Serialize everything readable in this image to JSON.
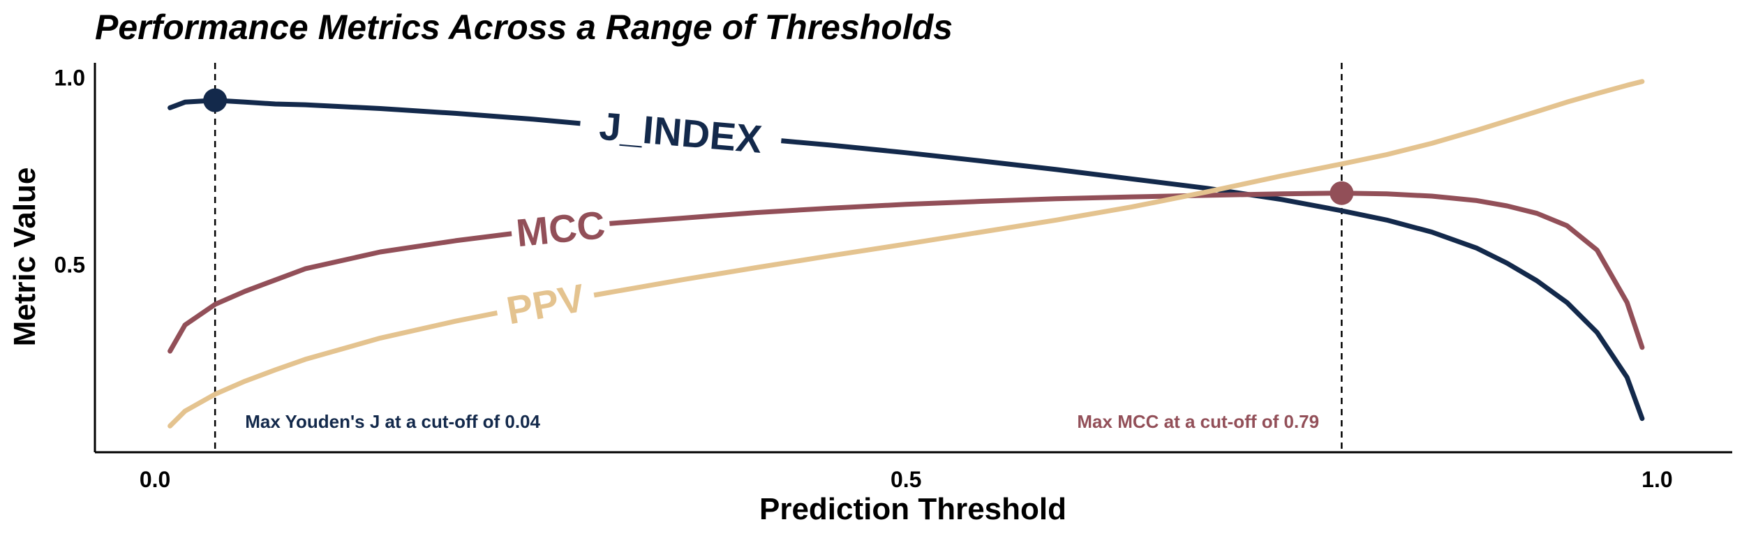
{
  "chart_data": {
    "type": "line",
    "title": "Performance Metrics Across a Range of Thresholds",
    "xlabel": "Prediction Threshold",
    "ylabel": "Metric Value",
    "xlim": [
      -0.04,
      1.05
    ],
    "ylim": [
      0.0,
      1.04
    ],
    "xticks": [
      {
        "value": 0.0,
        "label": "0.0"
      },
      {
        "value": 0.5,
        "label": "0.5"
      },
      {
        "value": 1.0,
        "label": "1.0"
      }
    ],
    "yticks": [
      {
        "value": 0.5,
        "label": "0.5"
      },
      {
        "value": 1.0,
        "label": "1.0"
      }
    ],
    "grid": false,
    "legend": "none",
    "series": [
      {
        "name": "J_INDEX",
        "color": "#13294b",
        "x": [
          0.01,
          0.02,
          0.04,
          0.06,
          0.08,
          0.1,
          0.15,
          0.2,
          0.25,
          0.3,
          0.35,
          0.4,
          0.45,
          0.5,
          0.55,
          0.6,
          0.65,
          0.7,
          0.75,
          0.79,
          0.82,
          0.85,
          0.88,
          0.9,
          0.92,
          0.94,
          0.96,
          0.98,
          0.99
        ],
        "y": [
          0.92,
          0.935,
          0.94,
          0.935,
          0.93,
          0.928,
          0.918,
          0.905,
          0.89,
          0.872,
          0.855,
          0.838,
          0.82,
          0.8,
          0.778,
          0.755,
          0.73,
          0.705,
          0.675,
          0.645,
          0.62,
          0.588,
          0.545,
          0.505,
          0.458,
          0.4,
          0.32,
          0.2,
          0.09
        ],
        "label_at": 0.35
      },
      {
        "name": "MCC",
        "color": "#924f58",
        "x": [
          0.01,
          0.02,
          0.04,
          0.06,
          0.08,
          0.1,
          0.15,
          0.2,
          0.25,
          0.3,
          0.35,
          0.4,
          0.45,
          0.5,
          0.55,
          0.6,
          0.65,
          0.7,
          0.75,
          0.79,
          0.82,
          0.85,
          0.88,
          0.9,
          0.92,
          0.94,
          0.96,
          0.98,
          0.99
        ],
        "y": [
          0.27,
          0.34,
          0.395,
          0.43,
          0.46,
          0.49,
          0.535,
          0.565,
          0.59,
          0.61,
          0.625,
          0.64,
          0.652,
          0.662,
          0.67,
          0.677,
          0.682,
          0.686,
          0.69,
          0.692,
          0.69,
          0.684,
          0.672,
          0.658,
          0.638,
          0.605,
          0.54,
          0.4,
          0.28
        ],
        "label_at": 0.27
      },
      {
        "name": "PPV",
        "color": "#e4c38f",
        "x": [
          0.01,
          0.02,
          0.04,
          0.06,
          0.08,
          0.1,
          0.15,
          0.2,
          0.25,
          0.3,
          0.35,
          0.4,
          0.45,
          0.5,
          0.55,
          0.6,
          0.65,
          0.7,
          0.75,
          0.79,
          0.82,
          0.85,
          0.88,
          0.9,
          0.92,
          0.94,
          0.96,
          0.98,
          0.99
        ],
        "y": [
          0.07,
          0.11,
          0.155,
          0.19,
          0.22,
          0.248,
          0.305,
          0.35,
          0.39,
          0.425,
          0.46,
          0.493,
          0.525,
          0.556,
          0.588,
          0.62,
          0.655,
          0.695,
          0.738,
          0.77,
          0.795,
          0.825,
          0.86,
          0.885,
          0.91,
          0.935,
          0.958,
          0.98,
          0.99
        ],
        "label_at": 0.26
      }
    ],
    "markers": [
      {
        "series": "J_INDEX",
        "x": 0.04,
        "y": 0.94,
        "color": "#13294b"
      },
      {
        "series": "MCC",
        "x": 0.79,
        "y": 0.692,
        "color": "#924f58"
      }
    ],
    "vlines": [
      0.04,
      0.79
    ],
    "annotations": [
      {
        "text": "Max Youden's J at a cut-off of 0.04",
        "x": 0.06,
        "y": 0.065,
        "color": "#13294b",
        "align": "start"
      },
      {
        "text": "Max MCC at a cut-off of 0.79",
        "x": 0.775,
        "y": 0.065,
        "color": "#924f58",
        "align": "end"
      }
    ]
  }
}
